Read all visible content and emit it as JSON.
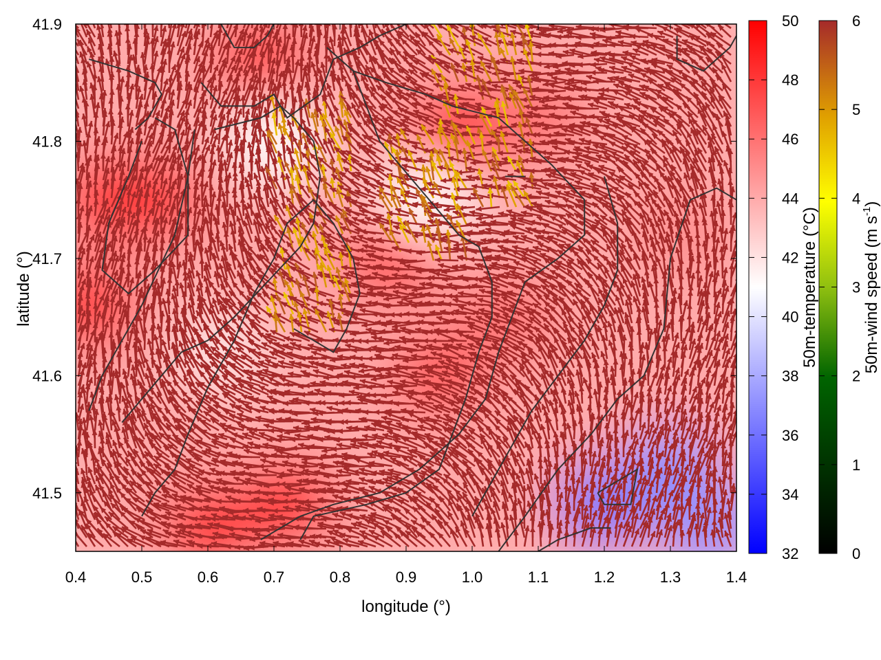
{
  "chart_data": {
    "type": "heatmap",
    "title": "",
    "xlabel": "longitude (°)",
    "ylabel": "latitude (°)",
    "xlim": [
      0.4,
      1.4
    ],
    "ylim": [
      41.45,
      41.9
    ],
    "x_ticks": [
      "0.4",
      "0.5",
      "0.6",
      "0.7",
      "0.8",
      "0.9",
      "1.0",
      "1.1",
      "1.2",
      "1.3",
      "1.4"
    ],
    "y_ticks": [
      "41.5",
      "41.6",
      "41.7",
      "41.8",
      "41.9"
    ],
    "temperature_colorbar": {
      "label": "50m-temperature (°C)",
      "range": [
        32,
        50
      ],
      "ticks": [
        "32",
        "34",
        "36",
        "38",
        "40",
        "42",
        "44",
        "46",
        "48",
        "50"
      ],
      "colors": [
        "#0000ff",
        "#ffffff",
        "#ff0000"
      ]
    },
    "wind_colorbar": {
      "label_main": "50m-wind speed (m s",
      "label_sup": "-1",
      "label_end": ")",
      "range": [
        0,
        6
      ],
      "ticks": [
        "0",
        "1",
        "2",
        "3",
        "4",
        "5",
        "6"
      ],
      "colors": [
        "#000000",
        "#006400",
        "#90c010",
        "#ffff00",
        "#e0a000",
        "#c06020",
        "#a52a2a"
      ]
    },
    "temperature_field": [
      {
        "lon": 0.45,
        "lat": 41.75,
        "value": 49
      },
      {
        "lon": 0.42,
        "lat": 41.66,
        "value": 49
      },
      {
        "lon": 0.52,
        "lat": 41.75,
        "value": 49
      },
      {
        "lon": 0.68,
        "lat": 41.87,
        "value": 48
      },
      {
        "lon": 0.6,
        "lat": 41.47,
        "value": 49
      },
      {
        "lon": 0.72,
        "lat": 41.49,
        "value": 49
      },
      {
        "lon": 0.98,
        "lat": 41.81,
        "value": 49
      },
      {
        "lon": 0.88,
        "lat": 41.7,
        "value": 48
      },
      {
        "lon": 1.1,
        "lat": 41.82,
        "value": 46
      },
      {
        "lon": 0.95,
        "lat": 41.6,
        "value": 47
      },
      {
        "lon": 1.05,
        "lat": 41.65,
        "value": 46
      },
      {
        "lon": 1.32,
        "lat": 41.72,
        "value": 45
      },
      {
        "lon": 1.2,
        "lat": 41.49,
        "value": 36
      },
      {
        "lon": 1.3,
        "lat": 41.52,
        "value": 37
      },
      {
        "lon": 1.36,
        "lat": 41.47,
        "value": 37
      },
      {
        "lon": 0.7,
        "lat": 41.8,
        "value": 41
      },
      {
        "lon": 0.93,
        "lat": 41.75,
        "value": 41
      },
      {
        "lon": 0.62,
        "lat": 41.62,
        "value": 42
      }
    ],
    "contours": [
      [
        [
          0.42,
          41.87
        ],
        [
          0.48,
          41.86
        ],
        [
          0.52,
          41.85
        ],
        [
          0.53,
          41.84
        ],
        [
          0.51,
          41.82
        ],
        [
          0.49,
          41.81
        ]
      ],
      [
        [
          0.5,
          41.8
        ],
        [
          0.48,
          41.77
        ],
        [
          0.45,
          41.73
        ],
        [
          0.44,
          41.69
        ],
        [
          0.48,
          41.67
        ],
        [
          0.52,
          41.69
        ],
        [
          0.57,
          41.72
        ],
        [
          0.57,
          41.77
        ],
        [
          0.55,
          41.81
        ],
        [
          0.52,
          41.82
        ]
      ],
      [
        [
          0.62,
          41.9
        ],
        [
          0.64,
          41.88
        ],
        [
          0.67,
          41.88
        ],
        [
          0.69,
          41.89
        ],
        [
          0.7,
          41.9
        ]
      ],
      [
        [
          0.59,
          41.85
        ],
        [
          0.62,
          41.83
        ],
        [
          0.67,
          41.83
        ],
        [
          0.7,
          41.84
        ],
        [
          0.72,
          41.82
        ],
        [
          0.77,
          41.84
        ],
        [
          0.79,
          41.87
        ],
        [
          0.83,
          41.88
        ],
        [
          0.86,
          41.89
        ],
        [
          0.9,
          41.9
        ]
      ],
      [
        [
          0.78,
          41.88
        ],
        [
          0.82,
          41.86
        ],
        [
          0.87,
          41.85
        ],
        [
          0.93,
          41.84
        ],
        [
          0.97,
          41.83
        ],
        [
          1.04,
          41.82
        ],
        [
          1.08,
          41.8
        ],
        [
          1.12,
          41.78
        ],
        [
          1.17,
          41.75
        ],
        [
          1.17,
          41.72
        ],
        [
          1.13,
          41.7
        ],
        [
          1.08,
          41.68
        ],
        [
          1.06,
          41.65
        ],
        [
          1.04,
          41.62
        ],
        [
          1.02,
          41.58
        ],
        [
          0.98,
          41.55
        ],
        [
          0.92,
          41.52
        ],
        [
          0.86,
          41.5
        ],
        [
          0.79,
          41.49
        ],
        [
          0.74,
          41.48
        ],
        [
          0.71,
          41.47
        ],
        [
          0.68,
          41.46
        ]
      ],
      [
        [
          0.58,
          41.81
        ],
        [
          0.57,
          41.77
        ],
        [
          0.55,
          41.72
        ],
        [
          0.5,
          41.66
        ],
        [
          0.46,
          41.62
        ],
        [
          0.44,
          41.6
        ],
        [
          0.42,
          41.57
        ]
      ],
      [
        [
          0.61,
          41.81
        ],
        [
          0.68,
          41.82
        ],
        [
          0.71,
          41.83
        ],
        [
          0.73,
          41.82
        ],
        [
          0.76,
          41.8
        ],
        [
          0.77,
          41.77
        ],
        [
          0.76,
          41.73
        ],
        [
          0.74,
          41.71
        ],
        [
          0.69,
          41.68
        ],
        [
          0.64,
          41.65
        ],
        [
          0.6,
          41.63
        ],
        [
          0.56,
          41.62
        ],
        [
          0.53,
          41.6
        ],
        [
          0.5,
          41.58
        ],
        [
          0.47,
          41.56
        ]
      ],
      [
        [
          0.82,
          41.86
        ],
        [
          0.84,
          41.83
        ],
        [
          0.86,
          41.8
        ],
        [
          0.89,
          41.78
        ],
        [
          0.92,
          41.76
        ],
        [
          0.95,
          41.74
        ],
        [
          0.98,
          41.72
        ],
        [
          1.01,
          41.71
        ],
        [
          1.03,
          41.68
        ],
        [
          1.03,
          41.65
        ],
        [
          1.01,
          41.62
        ],
        [
          0.99,
          41.58
        ],
        [
          0.97,
          41.55
        ],
        [
          0.95,
          41.52
        ],
        [
          0.9,
          41.5
        ],
        [
          0.84,
          41.49
        ],
        [
          0.76,
          41.48
        ],
        [
          0.74,
          41.46
        ]
      ],
      [
        [
          0.73,
          41.64
        ],
        [
          0.76,
          41.63
        ],
        [
          0.79,
          41.62
        ],
        [
          0.81,
          41.64
        ],
        [
          0.83,
          41.67
        ],
        [
          0.82,
          41.7
        ],
        [
          0.79,
          41.73
        ],
        [
          0.76,
          41.75
        ],
        [
          0.72,
          41.73
        ],
        [
          0.7,
          41.7
        ],
        [
          0.67,
          41.67
        ],
        [
          0.64,
          41.63
        ],
        [
          0.6,
          41.59
        ],
        [
          0.57,
          41.55
        ],
        [
          0.55,
          41.52
        ],
        [
          0.52,
          41.5
        ],
        [
          0.5,
          41.48
        ]
      ],
      [
        [
          1.0,
          41.48
        ],
        [
          1.04,
          41.52
        ],
        [
          1.09,
          41.57
        ],
        [
          1.13,
          41.6
        ],
        [
          1.17,
          41.63
        ],
        [
          1.2,
          41.66
        ],
        [
          1.22,
          41.69
        ],
        [
          1.22,
          41.73
        ],
        [
          1.2,
          41.77
        ]
      ],
      [
        [
          1.31,
          41.89
        ],
        [
          1.31,
          41.87
        ],
        [
          1.35,
          41.86
        ],
        [
          1.39,
          41.88
        ],
        [
          1.4,
          41.89
        ]
      ],
      [
        [
          1.04,
          41.45
        ],
        [
          1.08,
          41.48
        ],
        [
          1.13,
          41.52
        ],
        [
          1.18,
          41.55
        ],
        [
          1.22,
          41.58
        ],
        [
          1.26,
          41.6
        ],
        [
          1.29,
          41.64
        ],
        [
          1.3,
          41.7
        ],
        [
          1.33,
          41.75
        ],
        [
          1.37,
          41.76
        ],
        [
          1.4,
          41.75
        ]
      ],
      [
        [
          1.19,
          41.5
        ],
        [
          1.22,
          41.51
        ],
        [
          1.25,
          41.52
        ],
        [
          1.24,
          41.49
        ],
        [
          1.2,
          41.49
        ],
        [
          1.19,
          41.5
        ]
      ],
      [
        [
          1.1,
          41.45
        ],
        [
          1.13,
          41.46
        ],
        [
          1.18,
          41.47
        ],
        [
          1.21,
          41.47
        ]
      ],
      [
        [
          1.05,
          41.77
        ],
        [
          1.07,
          41.77
        ],
        [
          1.08,
          41.77
        ],
        [
          1.06,
          41.77
        ],
        [
          1.05,
          41.77
        ]
      ]
    ]
  }
}
